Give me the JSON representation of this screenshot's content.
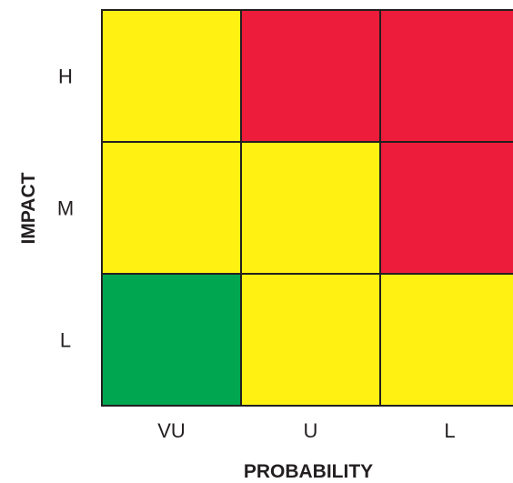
{
  "matrix": {
    "y_axis_title": "IMPACT",
    "x_axis_title": "PROBABILITY",
    "rows": [
      {
        "label": "H",
        "cells": [
          "yellow",
          "red",
          "red"
        ]
      },
      {
        "label": "M",
        "cells": [
          "yellow",
          "yellow",
          "red"
        ]
      },
      {
        "label": "L",
        "cells": [
          "green",
          "yellow",
          "yellow"
        ]
      }
    ],
    "columns": [
      {
        "label": "VU"
      },
      {
        "label": "U"
      },
      {
        "label": "L"
      }
    ],
    "colors": {
      "red": "#ed1c3a",
      "yellow": "#fff212",
      "green": "#00a650",
      "border": "#231f20"
    }
  }
}
